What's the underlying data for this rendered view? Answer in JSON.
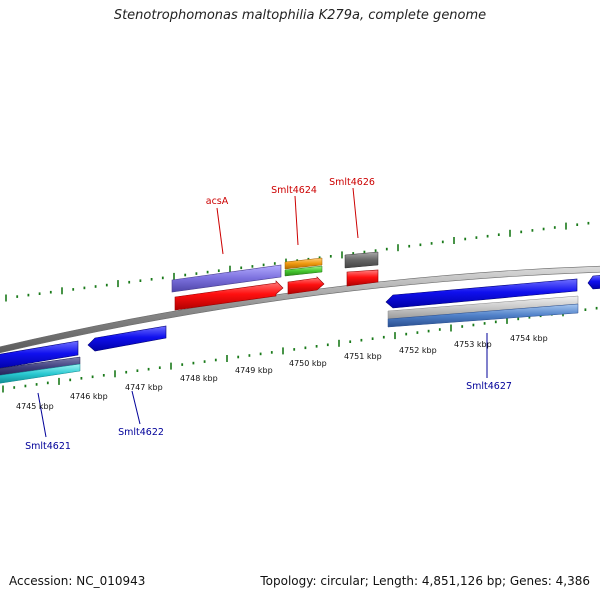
{
  "title": "Stenotrophomonas maltophilia K279a, complete genome",
  "accession": "Accession: NC_010943",
  "genome_info": "Topology: circular; Length: 4,851,126 bp; Genes: 4,386",
  "kbp_labels": [
    "4745 kbp",
    "4746 kbp",
    "4747 kbp",
    "4748 kbp",
    "4749 kbp",
    "4750 kbp",
    "4751 kbp",
    "4752 kbp",
    "4753 kbp",
    "4754 kbp"
  ],
  "gene_labels": {
    "acsA": "acsA",
    "smlt4624": "Smlt4624",
    "smlt4626": "Smlt4626",
    "smlt4621": "Smlt4621",
    "smlt4622": "Smlt4622",
    "smlt4627": "Smlt4627"
  },
  "colors": {
    "forward_label": "#cc0000",
    "reverse_label": "#000099",
    "tick": "#1a7a1a",
    "forward_gene": "#ff0000",
    "reverse_gene": "#0000ee",
    "backbone": "#888888"
  }
}
